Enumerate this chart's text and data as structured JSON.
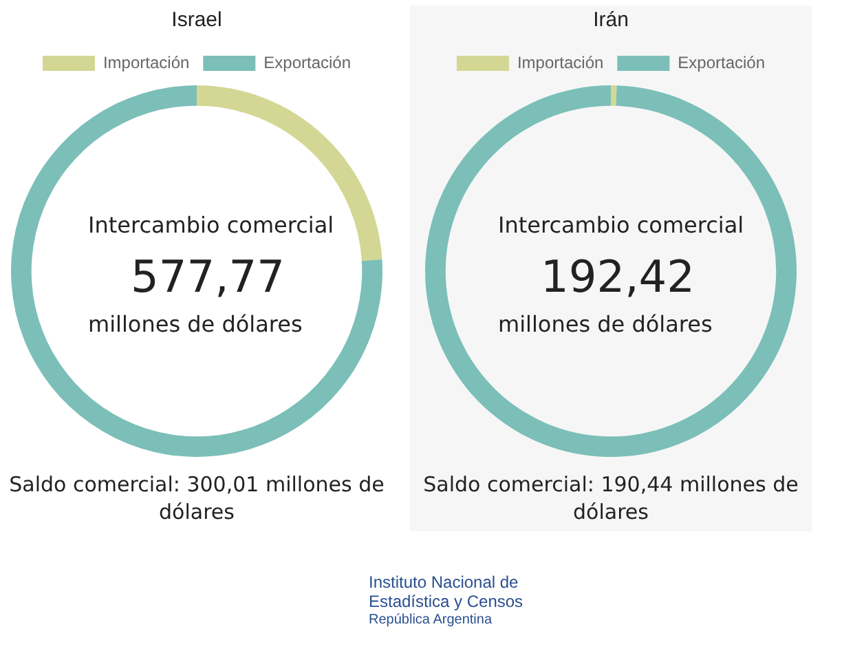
{
  "chart_data": [
    {
      "type": "donut",
      "title": "Israel",
      "categories": [
        "Importación",
        "Exportación"
      ],
      "values": [
        24,
        76
      ],
      "colors": [
        "#d3d793",
        "#7bbfb8"
      ],
      "legend": "top",
      "annotations": [
        "Intercambio comercial",
        "577,77",
        "millones de dólares",
        "Saldo comercial: 300,01 millones de dólares",
        "Instituto Nacional de Estadística y Censos",
        "República Argentina"
      ]
    },
    {
      "type": "donut",
      "title": "Irán",
      "categories": [
        "Importación",
        "Exportación"
      ],
      "values": [
        0.5,
        99.5
      ],
      "colors": [
        "#d3d793",
        "#7bbfb8"
      ],
      "legend": "top",
      "annotations": [
        "Intercambio comercial",
        "192,42",
        "millones de dólares",
        "Saldo comercial: 190,44 millones de dólares"
      ]
    }
  ]
}
